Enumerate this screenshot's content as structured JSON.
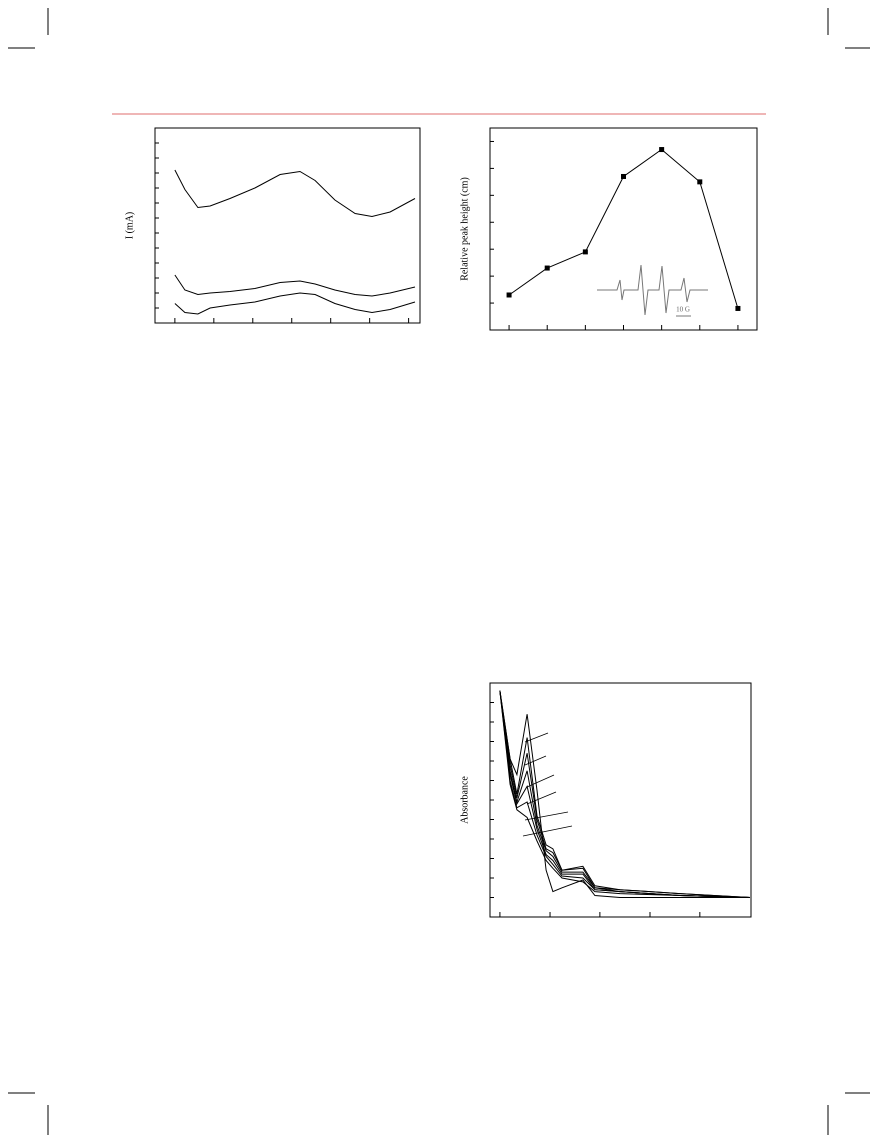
{
  "chart_data": [
    {
      "type": "line",
      "ylabel": "I (mA)",
      "color": "#000000",
      "xlim": [
        0,
        100
      ],
      "ylim": [
        0,
        13
      ],
      "xticks": [
        7.5,
        22.2,
        36.9,
        51.6,
        66.3,
        81,
        95.7
      ],
      "yticks": [
        1,
        2,
        3,
        4,
        5,
        6,
        7,
        8,
        9,
        10,
        11,
        12
      ],
      "x": [
        7.5,
        11.3,
        16.2,
        20.8,
        28.3,
        37.7,
        47.2,
        54.7,
        60.4,
        67.9,
        75.5,
        81.9,
        88.7,
        98.1
      ],
      "series": [
        {
          "values": [
            10.2,
            8.9,
            7.7,
            7.8,
            8.3,
            9.0,
            9.9,
            10.1,
            9.5,
            8.2,
            7.3,
            7.1,
            7.4,
            8.3
          ]
        },
        {
          "values": [
            3.2,
            2.2,
            1.9,
            2.0,
            2.1,
            2.3,
            2.7,
            2.8,
            2.6,
            2.2,
            1.9,
            1.8,
            2.0,
            2.4
          ]
        },
        {
          "values": [
            1.3,
            0.7,
            0.6,
            1.0,
            1.2,
            1.4,
            1.8,
            2.0,
            1.9,
            1.3,
            0.9,
            0.7,
            0.9,
            1.4
          ]
        }
      ]
    },
    {
      "type": "line",
      "ylabel": "Relative peak height (cm)",
      "color": "#000000",
      "marker": "square",
      "xlim": [
        0,
        7
      ],
      "ylim": [
        0,
        7.5
      ],
      "xticks": [
        0.5,
        1.5,
        2.5,
        3.5,
        4.5,
        5.5,
        6.5
      ],
      "yticks": [
        1,
        2,
        3,
        4,
        5,
        6,
        7
      ],
      "x": [
        0.5,
        1.5,
        2.5,
        3.5,
        4.5,
        5.5,
        6.5
      ],
      "series": [
        {
          "values": [
            1.3,
            2.3,
            2.9,
            5.7,
            6.7,
            5.5,
            0.8
          ]
        }
      ],
      "annotations": [
        "10 G"
      ]
    },
    {
      "type": "line",
      "ylabel": "Absorbance",
      "color": "#000000",
      "xlim": [
        0,
        100
      ],
      "ylim": [
        0,
        12
      ],
      "xticks": [
        3.8,
        23,
        42.1,
        61.3,
        80.4
      ],
      "yticks": [
        1,
        2,
        3,
        4,
        5,
        6,
        7,
        8,
        9,
        10,
        11
      ],
      "x": [
        3.8,
        7.7,
        10.3,
        14.2,
        18.0,
        21.5,
        24.1,
        27.6,
        35.6,
        40.2,
        49.8,
        72.8,
        99.6
      ],
      "series": [
        {
          "values": [
            11.6,
            8.1,
            7.3,
            10.4,
            6.5,
            2.4,
            1.3,
            1.5,
            1.9,
            1.1,
            1.0,
            1.0,
            1.0
          ]
        },
        {
          "values": [
            11.6,
            8.1,
            6.3,
            9.2,
            5.2,
            3.7,
            3.5,
            2.4,
            2.6,
            1.6,
            1.4,
            1.2,
            1.0
          ]
        },
        {
          "values": [
            11.6,
            7.8,
            6.1,
            8.4,
            5.0,
            3.5,
            3.3,
            2.4,
            2.5,
            1.5,
            1.4,
            1.2,
            1.0
          ]
        },
        {
          "values": [
            11.6,
            7.5,
            5.9,
            7.5,
            4.7,
            3.4,
            3.1,
            2.3,
            2.3,
            1.5,
            1.3,
            1.1,
            1.0
          ]
        },
        {
          "values": [
            11.6,
            7.3,
            5.8,
            6.7,
            4.5,
            3.2,
            2.9,
            2.2,
            2.2,
            1.4,
            1.3,
            1.1,
            1.0
          ]
        },
        {
          "values": [
            11.6,
            7.0,
            5.6,
            5.9,
            4.2,
            3.1,
            2.7,
            2.1,
            2.0,
            1.4,
            1.3,
            1.1,
            1.0
          ]
        },
        {
          "values": [
            11.6,
            6.8,
            5.5,
            5.1,
            3.9,
            2.9,
            2.5,
            2.0,
            1.8,
            1.3,
            1.2,
            1.1,
            1.0
          ]
        }
      ]
    }
  ]
}
